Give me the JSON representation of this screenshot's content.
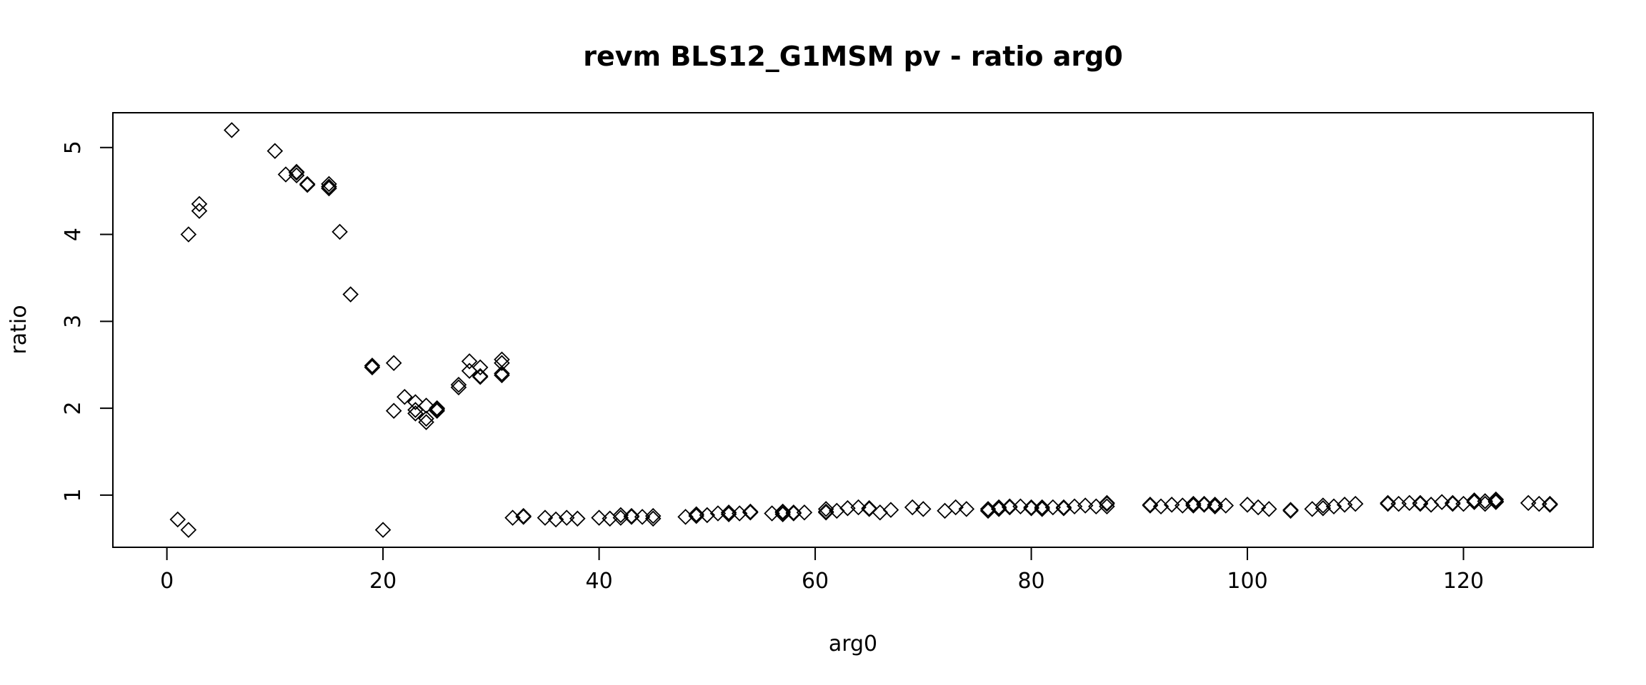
{
  "chart_data": {
    "type": "scatter",
    "title": "revm BLS12_G1MSM pv - ratio arg0",
    "xlabel": "arg0",
    "ylabel": "ratio",
    "xlim": [
      -5,
      132
    ],
    "ylim": [
      0.4,
      5.4
    ],
    "x_ticks": [
      0,
      20,
      40,
      60,
      80,
      100,
      120
    ],
    "x_tick_labels": [
      "0",
      "20",
      "40",
      "60",
      "80",
      "100",
      "120"
    ],
    "y_ticks": [
      1,
      2,
      3,
      4,
      5
    ],
    "y_tick_labels": [
      "1",
      "2",
      "3",
      "4",
      "5"
    ],
    "marker": "diamond",
    "grid": false,
    "series": [
      {
        "points": [
          [
            1,
            0.72
          ],
          [
            2,
            0.6
          ],
          [
            2,
            4.0
          ],
          [
            3,
            4.27
          ],
          [
            3,
            4.35
          ],
          [
            6,
            5.2
          ],
          [
            10,
            4.96
          ],
          [
            11,
            4.69
          ],
          [
            12,
            4.72
          ],
          [
            12,
            4.68
          ],
          [
            12,
            4.71
          ],
          [
            13,
            4.57
          ],
          [
            13,
            4.58
          ],
          [
            15,
            4.53
          ],
          [
            15,
            4.58
          ],
          [
            15,
            4.55
          ],
          [
            16,
            4.03
          ],
          [
            17,
            3.31
          ],
          [
            19,
            2.47
          ],
          [
            19,
            2.49
          ],
          [
            20,
            0.6
          ],
          [
            21,
            2.52
          ],
          [
            21,
            1.97
          ],
          [
            22,
            2.13
          ],
          [
            23,
            2.07
          ],
          [
            23,
            1.98
          ],
          [
            23,
            1.94
          ],
          [
            24,
            2.03
          ],
          [
            24,
            1.88
          ],
          [
            24,
            1.84
          ],
          [
            25,
            2.0
          ],
          [
            25,
            1.97
          ],
          [
            25,
            1.99
          ],
          [
            27,
            2.24
          ],
          [
            27,
            2.27
          ],
          [
            28,
            2.54
          ],
          [
            28,
            2.43
          ],
          [
            29,
            2.47
          ],
          [
            29,
            2.36
          ],
          [
            29,
            2.37
          ],
          [
            31,
            2.56
          ],
          [
            31,
            2.52
          ],
          [
            31,
            2.4
          ],
          [
            31,
            2.38
          ],
          [
            32,
            0.74
          ],
          [
            33,
            0.76
          ],
          [
            33,
            0.75
          ],
          [
            35,
            0.74
          ],
          [
            36,
            0.72
          ],
          [
            37,
            0.74
          ],
          [
            38,
            0.73
          ],
          [
            40,
            0.74
          ],
          [
            41,
            0.73
          ],
          [
            42,
            0.74
          ],
          [
            42,
            0.77
          ],
          [
            43,
            0.76
          ],
          [
            43,
            0.75
          ],
          [
            44,
            0.75
          ],
          [
            45,
            0.73
          ],
          [
            45,
            0.76
          ],
          [
            48,
            0.75
          ],
          [
            49,
            0.76
          ],
          [
            49,
            0.78
          ],
          [
            50,
            0.77
          ],
          [
            51,
            0.79
          ],
          [
            52,
            0.8
          ],
          [
            52,
            0.78
          ],
          [
            53,
            0.79
          ],
          [
            54,
            0.8
          ],
          [
            54,
            0.81
          ],
          [
            56,
            0.79
          ],
          [
            57,
            0.8
          ],
          [
            57,
            0.78
          ],
          [
            57,
            0.81
          ],
          [
            58,
            0.79
          ],
          [
            58,
            0.8
          ],
          [
            59,
            0.8
          ],
          [
            61,
            0.8
          ],
          [
            61,
            0.84
          ],
          [
            61,
            0.81
          ],
          [
            62,
            0.82
          ],
          [
            63,
            0.85
          ],
          [
            64,
            0.86
          ],
          [
            65,
            0.85
          ],
          [
            65,
            0.84
          ],
          [
            66,
            0.8
          ],
          [
            67,
            0.83
          ],
          [
            69,
            0.86
          ],
          [
            70,
            0.84
          ],
          [
            72,
            0.82
          ],
          [
            73,
            0.86
          ],
          [
            74,
            0.84
          ],
          [
            76,
            0.84
          ],
          [
            76,
            0.82
          ],
          [
            77,
            0.86
          ],
          [
            77,
            0.84
          ],
          [
            78,
            0.87
          ],
          [
            78,
            0.86
          ],
          [
            79,
            0.87
          ],
          [
            80,
            0.86
          ],
          [
            80,
            0.85
          ],
          [
            81,
            0.86
          ],
          [
            81,
            0.84
          ],
          [
            82,
            0.86
          ],
          [
            83,
            0.86
          ],
          [
            83,
            0.85
          ],
          [
            84,
            0.87
          ],
          [
            85,
            0.88
          ],
          [
            86,
            0.87
          ],
          [
            87,
            0.87
          ],
          [
            87,
            0.9
          ],
          [
            87,
            0.91
          ],
          [
            91,
            0.89
          ],
          [
            91,
            0.88
          ],
          [
            92,
            0.87
          ],
          [
            93,
            0.89
          ],
          [
            94,
            0.88
          ],
          [
            95,
            0.88
          ],
          [
            95,
            0.9
          ],
          [
            96,
            0.9
          ],
          [
            96,
            0.89
          ],
          [
            97,
            0.87
          ],
          [
            97,
            0.89
          ],
          [
            98,
            0.88
          ],
          [
            100,
            0.89
          ],
          [
            101,
            0.86
          ],
          [
            102,
            0.84
          ],
          [
            104,
            0.83
          ],
          [
            104,
            0.82
          ],
          [
            106,
            0.84
          ],
          [
            107,
            0.88
          ],
          [
            107,
            0.85
          ],
          [
            108,
            0.87
          ],
          [
            109,
            0.89
          ],
          [
            110,
            0.9
          ],
          [
            113,
            0.91
          ],
          [
            113,
            0.9
          ],
          [
            114,
            0.9
          ],
          [
            115,
            0.91
          ],
          [
            116,
            0.9
          ],
          [
            116,
            0.91
          ],
          [
            117,
            0.89
          ],
          [
            118,
            0.92
          ],
          [
            119,
            0.91
          ],
          [
            119,
            0.9
          ],
          [
            120,
            0.9
          ],
          [
            121,
            0.94
          ],
          [
            121,
            0.92
          ],
          [
            122,
            0.9
          ],
          [
            122,
            0.93
          ],
          [
            123,
            0.93
          ],
          [
            123,
            0.92
          ],
          [
            123,
            0.95
          ],
          [
            126,
            0.91
          ],
          [
            127,
            0.9
          ],
          [
            128,
            0.89
          ],
          [
            128,
            0.9
          ]
        ]
      }
    ]
  }
}
